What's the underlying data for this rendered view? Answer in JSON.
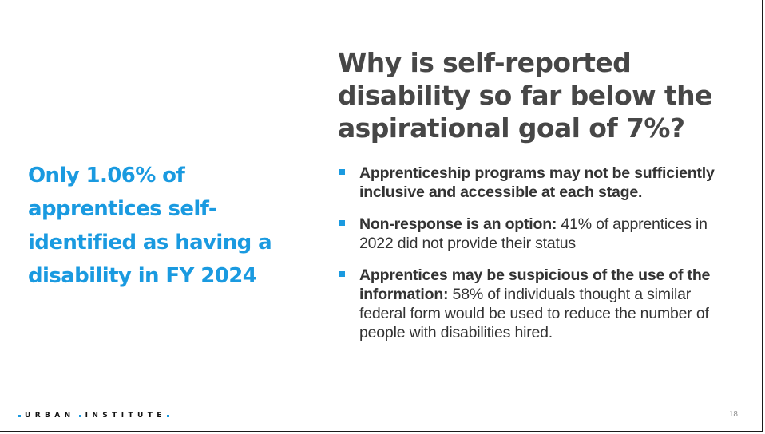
{
  "callout": {
    "text": "Only 1.06% of apprentices self-identified as having a disability in FY 2024"
  },
  "heading": {
    "text": "Why is self-reported disability so far below the aspirational goal of 7%?"
  },
  "bullets": [
    {
      "bold": "Apprenticeship programs may not be sufficiently inclusive and accessible at each stage.",
      "rest": ""
    },
    {
      "bold": "Non-response is an option:",
      "rest": " 41% of apprentices in 2022 did not provide their status"
    },
    {
      "bold": "Apprentices may be suspicious of the use of the information:",
      "rest": " 58% of individuals thought a similar federal form would be used to reduce the number of people with disabilities hired."
    }
  ],
  "footer": {
    "logo_word_1": "URBAN",
    "logo_word_2": "INSTITUTE",
    "page_number": "18"
  },
  "colors": {
    "accent": "#1a9ae0",
    "heading": "#474747",
    "body_text": "#333333"
  },
  "icons": {
    "bullet_marker": "square-bullet-icon",
    "logo_separator": "dot-icon"
  }
}
